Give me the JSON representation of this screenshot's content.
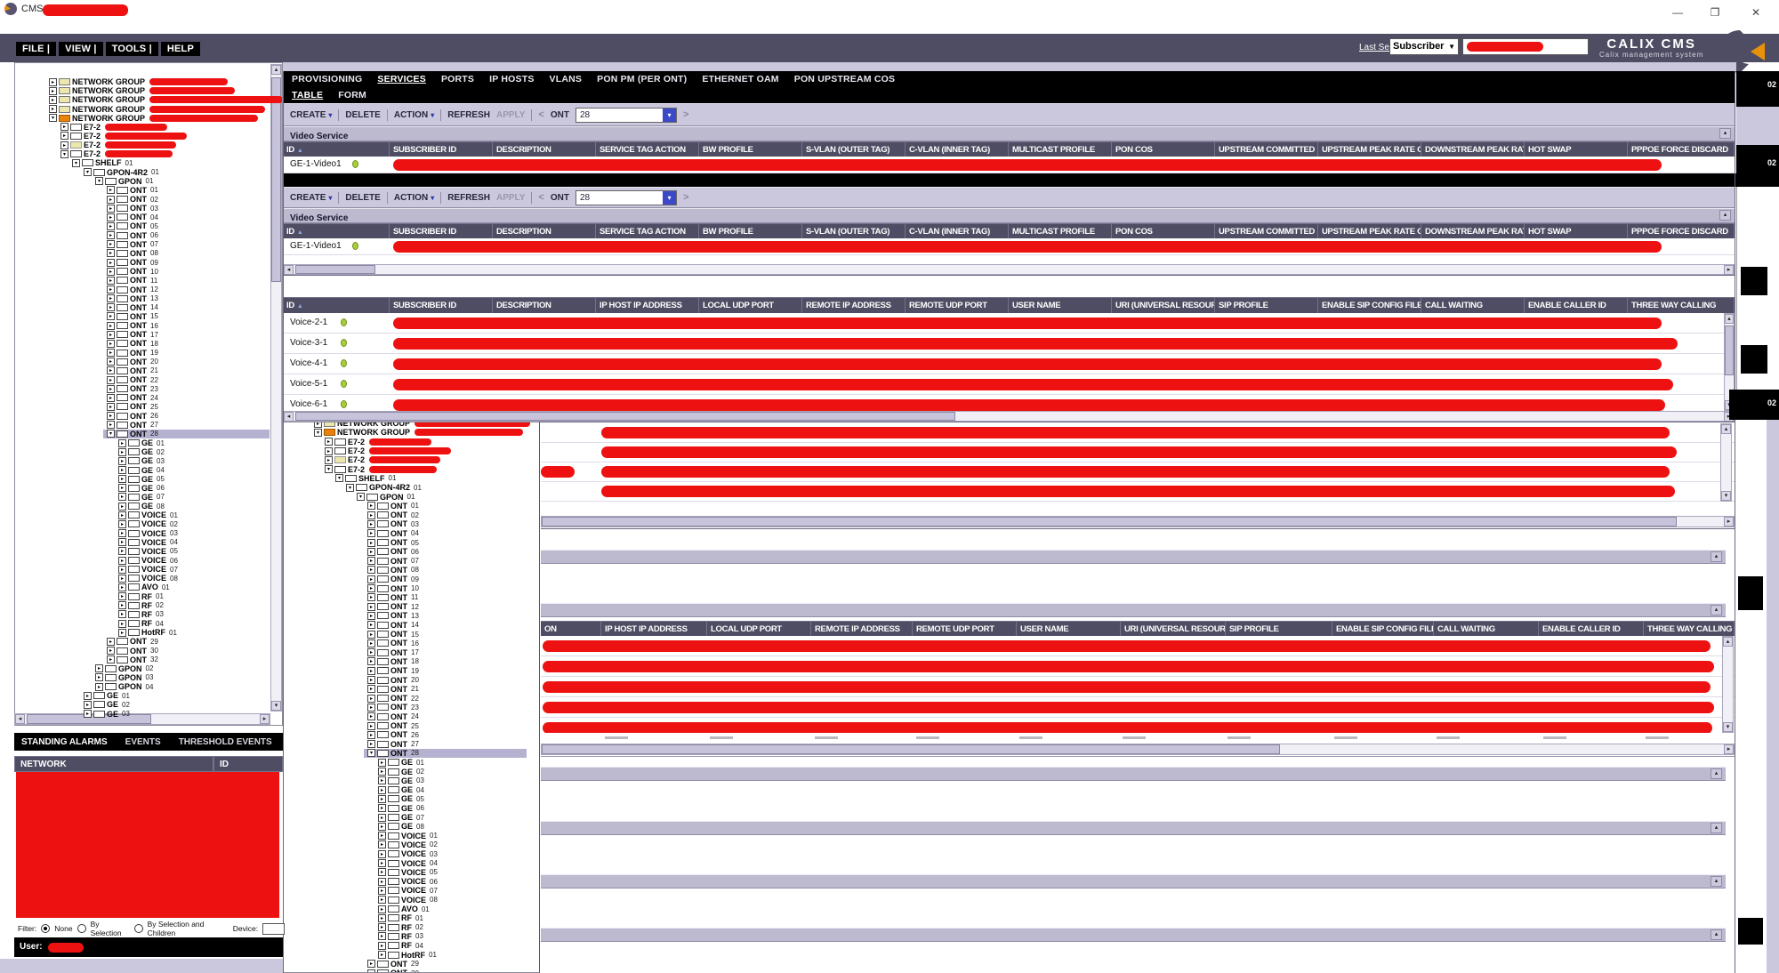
{
  "titlebar": {
    "app_name": "CMS"
  },
  "menubar": {
    "items": [
      "FILE |",
      "VIEW |",
      "TOOLS |",
      "HELP"
    ],
    "search": {
      "label": "Last Search",
      "type_value": "Subscriber"
    },
    "brand": {
      "name": "CALIX CMS",
      "tagline": "Calix management system"
    }
  },
  "nav_tabs": {
    "items": [
      "PROVISIONING",
      "SERVICES",
      "PORTS",
      "IP HOSTS",
      "VLANS",
      "PON PM (PER ONT)",
      "ETHERNET OAM",
      "PON UPSTREAM COS"
    ],
    "active": "SERVICES"
  },
  "view_tabs": {
    "items": [
      "TABLE",
      "FORM"
    ],
    "active": "TABLE"
  },
  "toolbar": {
    "create": "CREATE",
    "delete": "DELETE",
    "action": "ACTION",
    "refresh": "REFRESH",
    "apply": "APPLY",
    "nav_prev": "<",
    "nav_next": ">",
    "context_label": "ONT",
    "context_value": "28"
  },
  "video_service": {
    "title": "Video Service",
    "sort_column": "ID",
    "columns": [
      "ID",
      "SUBSCRIBER ID",
      "DESCRIPTION",
      "SERVICE TAG ACTION",
      "BW PROFILE",
      "S-VLAN (OUTER TAG)",
      "C-VLAN (INNER TAG)",
      "MULTICAST PROFILE",
      "PON COS",
      "UPSTREAM COMMITTED RA",
      "UPSTREAM PEAK RATE OVE",
      "DOWNSTREAM PEAK RATE",
      "HOT SWAP",
      "PPPOE FORCE DISCARD"
    ],
    "rows": [
      {
        "id": "GE-1-Video1",
        "status": "ok"
      }
    ]
  },
  "voice_service": {
    "sort_column": "ID",
    "columns": [
      "ID",
      "SUBSCRIBER ID",
      "DESCRIPTION",
      "IP HOST IP ADDRESS",
      "LOCAL UDP PORT",
      "REMOTE IP ADDRESS",
      "REMOTE UDP PORT",
      "USER NAME",
      "URI (UNIVERSAL RESOURCE",
      "SIP PROFILE",
      "ENABLE SIP CONFIG FILE (C",
      "CALL WAITING",
      "ENABLE CALLER ID",
      "THREE WAY CALLING"
    ],
    "rows": [
      {
        "id": "Voice-2-1",
        "status": "ok"
      },
      {
        "id": "Voice-3-1",
        "status": "ok"
      },
      {
        "id": "Voice-4-1",
        "status": "ok"
      },
      {
        "id": "Voice-5-1",
        "status": "ok"
      },
      {
        "id": "Voice-6-1",
        "status": "ok"
      }
    ]
  },
  "win3": {
    "clipped_header_fragment": "ON",
    "redacted_top_rows": 4,
    "redacted_voice_rows": 5
  },
  "tree": {
    "items": [
      {
        "l": "NETWORK GROUP",
        "n": "",
        "lv": 0,
        "st": "c",
        "ic": "fy",
        "r": 88
      },
      {
        "l": "NETWORK GROUP",
        "n": "",
        "lv": 0,
        "st": "c",
        "ic": "fy",
        "r": 96
      },
      {
        "l": "NETWORK GROUP",
        "n": "",
        "lv": 0,
        "st": "c",
        "ic": "fy",
        "r": 150
      },
      {
        "l": "NETWORK GROUP",
        "n": "",
        "lv": 0,
        "st": "c",
        "ic": "fy",
        "r": 130
      },
      {
        "l": "NETWORK GROUP",
        "n": "",
        "lv": 0,
        "st": "e",
        "ic": "fo",
        "r": 122
      },
      {
        "l": "E7-2",
        "n": "",
        "lv": 1,
        "st": "c",
        "ic": "bx",
        "r": 70
      },
      {
        "l": "E7-2",
        "n": "",
        "lv": 1,
        "st": "c",
        "ic": "bx",
        "r": 92
      },
      {
        "l": "E7-2",
        "n": "",
        "lv": 1,
        "st": "c",
        "ic": "by",
        "r": 80
      },
      {
        "l": "E7-2",
        "n": "",
        "lv": 1,
        "st": "e",
        "ic": "bx",
        "r": 76
      },
      {
        "l": "SHELF",
        "n": "01",
        "lv": 2,
        "st": "e",
        "ic": "bx",
        "r": 0
      },
      {
        "l": "GPON-4R2",
        "n": "01",
        "lv": 3,
        "st": "e",
        "ic": "bx",
        "r": 0
      },
      {
        "l": "GPON",
        "n": "01",
        "lv": 4,
        "st": "e",
        "ic": "bx",
        "r": 0
      },
      {
        "l": "ONT",
        "n": "01",
        "lv": 5,
        "st": "c",
        "ic": "bx",
        "r": 0
      },
      {
        "l": "ONT",
        "n": "02",
        "lv": 5,
        "st": "c",
        "ic": "bx",
        "r": 0
      },
      {
        "l": "ONT",
        "n": "03",
        "lv": 5,
        "st": "c",
        "ic": "bx",
        "r": 0
      },
      {
        "l": "ONT",
        "n": "04",
        "lv": 5,
        "st": "c",
        "ic": "bx",
        "r": 0
      },
      {
        "l": "ONT",
        "n": "05",
        "lv": 5,
        "st": "c",
        "ic": "bx",
        "r": 0
      },
      {
        "l": "ONT",
        "n": "06",
        "lv": 5,
        "st": "c",
        "ic": "bx",
        "r": 0
      },
      {
        "l": "ONT",
        "n": "07",
        "lv": 5,
        "st": "c",
        "ic": "bx",
        "r": 0
      },
      {
        "l": "ONT",
        "n": "08",
        "lv": 5,
        "st": "c",
        "ic": "bx",
        "r": 0
      },
      {
        "l": "ONT",
        "n": "09",
        "lv": 5,
        "st": "c",
        "ic": "bx",
        "r": 0
      },
      {
        "l": "ONT",
        "n": "10",
        "lv": 5,
        "st": "c",
        "ic": "bx",
        "r": 0
      },
      {
        "l": "ONT",
        "n": "11",
        "lv": 5,
        "st": "c",
        "ic": "bx",
        "r": 0
      },
      {
        "l": "ONT",
        "n": "12",
        "lv": 5,
        "st": "c",
        "ic": "bx",
        "r": 0
      },
      {
        "l": "ONT",
        "n": "13",
        "lv": 5,
        "st": "c",
        "ic": "bx",
        "r": 0
      },
      {
        "l": "ONT",
        "n": "14",
        "lv": 5,
        "st": "c",
        "ic": "bx",
        "r": 0
      },
      {
        "l": "ONT",
        "n": "15",
        "lv": 5,
        "st": "c",
        "ic": "bx",
        "r": 0
      },
      {
        "l": "ONT",
        "n": "16",
        "lv": 5,
        "st": "c",
        "ic": "bx",
        "r": 0
      },
      {
        "l": "ONT",
        "n": "17",
        "lv": 5,
        "st": "c",
        "ic": "bx",
        "r": 0
      },
      {
        "l": "ONT",
        "n": "18",
        "lv": 5,
        "st": "c",
        "ic": "bx",
        "r": 0
      },
      {
        "l": "ONT",
        "n": "19",
        "lv": 5,
        "st": "c",
        "ic": "bx",
        "r": 0
      },
      {
        "l": "ONT",
        "n": "20",
        "lv": 5,
        "st": "c",
        "ic": "bx",
        "r": 0
      },
      {
        "l": "ONT",
        "n": "21",
        "lv": 5,
        "st": "c",
        "ic": "bx",
        "r": 0
      },
      {
        "l": "ONT",
        "n": "22",
        "lv": 5,
        "st": "c",
        "ic": "bx",
        "r": 0
      },
      {
        "l": "ONT",
        "n": "23",
        "lv": 5,
        "st": "c",
        "ic": "bx",
        "r": 0
      },
      {
        "l": "ONT",
        "n": "24",
        "lv": 5,
        "st": "c",
        "ic": "bx",
        "r": 0
      },
      {
        "l": "ONT",
        "n": "25",
        "lv": 5,
        "st": "c",
        "ic": "bx",
        "r": 0
      },
      {
        "l": "ONT",
        "n": "26",
        "lv": 5,
        "st": "c",
        "ic": "bx",
        "r": 0
      },
      {
        "l": "ONT",
        "n": "27",
        "lv": 5,
        "st": "c",
        "ic": "bx",
        "r": 0
      },
      {
        "l": "ONT",
        "n": "28",
        "lv": 5,
        "st": "e",
        "ic": "bx",
        "r": 0,
        "sel": true
      },
      {
        "l": "GE",
        "n": "01",
        "lv": 6,
        "st": "c",
        "ic": "bx",
        "r": 0
      },
      {
        "l": "GE",
        "n": "02",
        "lv": 6,
        "st": "c",
        "ic": "bx",
        "r": 0
      },
      {
        "l": "GE",
        "n": "03",
        "lv": 6,
        "st": "c",
        "ic": "bx",
        "r": 0
      },
      {
        "l": "GE",
        "n": "04",
        "lv": 6,
        "st": "c",
        "ic": "bx",
        "r": 0
      },
      {
        "l": "GE",
        "n": "05",
        "lv": 6,
        "st": "c",
        "ic": "bx",
        "r": 0
      },
      {
        "l": "GE",
        "n": "06",
        "lv": 6,
        "st": "c",
        "ic": "bx",
        "r": 0
      },
      {
        "l": "GE",
        "n": "07",
        "lv": 6,
        "st": "c",
        "ic": "bx",
        "r": 0
      },
      {
        "l": "GE",
        "n": "08",
        "lv": 6,
        "st": "c",
        "ic": "bx",
        "r": 0
      },
      {
        "l": "VOICE",
        "n": "01",
        "lv": 6,
        "st": "c",
        "ic": "bx",
        "r": 0
      },
      {
        "l": "VOICE",
        "n": "02",
        "lv": 6,
        "st": "c",
        "ic": "bx",
        "r": 0
      },
      {
        "l": "VOICE",
        "n": "03",
        "lv": 6,
        "st": "c",
        "ic": "bx",
        "r": 0
      },
      {
        "l": "VOICE",
        "n": "04",
        "lv": 6,
        "st": "c",
        "ic": "bx",
        "r": 0
      },
      {
        "l": "VOICE",
        "n": "05",
        "lv": 6,
        "st": "c",
        "ic": "bx",
        "r": 0
      },
      {
        "l": "VOICE",
        "n": "06",
        "lv": 6,
        "st": "c",
        "ic": "bx",
        "r": 0
      },
      {
        "l": "VOICE",
        "n": "07",
        "lv": 6,
        "st": "c",
        "ic": "bx",
        "r": 0
      },
      {
        "l": "VOICE",
        "n": "08",
        "lv": 6,
        "st": "c",
        "ic": "bx",
        "r": 0
      },
      {
        "l": "AVO",
        "n": "01",
        "lv": 6,
        "st": "c",
        "ic": "bx",
        "r": 0
      },
      {
        "l": "RF",
        "n": "01",
        "lv": 6,
        "st": "c",
        "ic": "bx",
        "r": 0
      },
      {
        "l": "RF",
        "n": "02",
        "lv": 6,
        "st": "c",
        "ic": "bx",
        "r": 0
      },
      {
        "l": "RF",
        "n": "03",
        "lv": 6,
        "st": "c",
        "ic": "bx",
        "r": 0
      },
      {
        "l": "RF",
        "n": "04",
        "lv": 6,
        "st": "c",
        "ic": "bx",
        "r": 0
      },
      {
        "l": "HotRF",
        "n": "01",
        "lv": 6,
        "st": "c",
        "ic": "bx",
        "r": 0
      },
      {
        "l": "ONT",
        "n": "29",
        "lv": 5,
        "st": "c",
        "ic": "bx",
        "r": 0
      },
      {
        "l": "ONT",
        "n": "30",
        "lv": 5,
        "st": "c",
        "ic": "bx",
        "r": 0
      },
      {
        "l": "ONT",
        "n": "32",
        "lv": 5,
        "st": "c",
        "ic": "bx",
        "r": 0
      },
      {
        "l": "GPON",
        "n": "02",
        "lv": 4,
        "st": "c",
        "ic": "bx",
        "r": 0
      },
      {
        "l": "GPON",
        "n": "03",
        "lv": 4,
        "st": "c",
        "ic": "bx",
        "r": 0
      },
      {
        "l": "GPON",
        "n": "04",
        "lv": 4,
        "st": "c",
        "ic": "bx",
        "r": 0
      },
      {
        "l": "GE",
        "n": "01",
        "lv": 3,
        "st": "c",
        "ic": "bx",
        "r": 0
      },
      {
        "l": "GE",
        "n": "02",
        "lv": 3,
        "st": "c",
        "ic": "bx",
        "r": 0
      },
      {
        "l": "GE",
        "n": "03",
        "lv": 3,
        "st": "c",
        "ic": "bx",
        "r": 0
      }
    ]
  },
  "alarms_panel": {
    "tabs": [
      "STANDING ALARMS",
      "EVENTS",
      "THRESHOLD EVENTS"
    ],
    "active_tab": "STANDING ALARMS",
    "columns": [
      "NETWORK",
      "ID"
    ],
    "filter": {
      "label": "Filter:",
      "options": [
        "None",
        "By Selection",
        "By Selection and Children"
      ],
      "selected": "None",
      "device_label": "Device:"
    },
    "user_label": "User:"
  },
  "fragments": {
    "labels": [
      "02",
      "02",
      "02"
    ]
  }
}
